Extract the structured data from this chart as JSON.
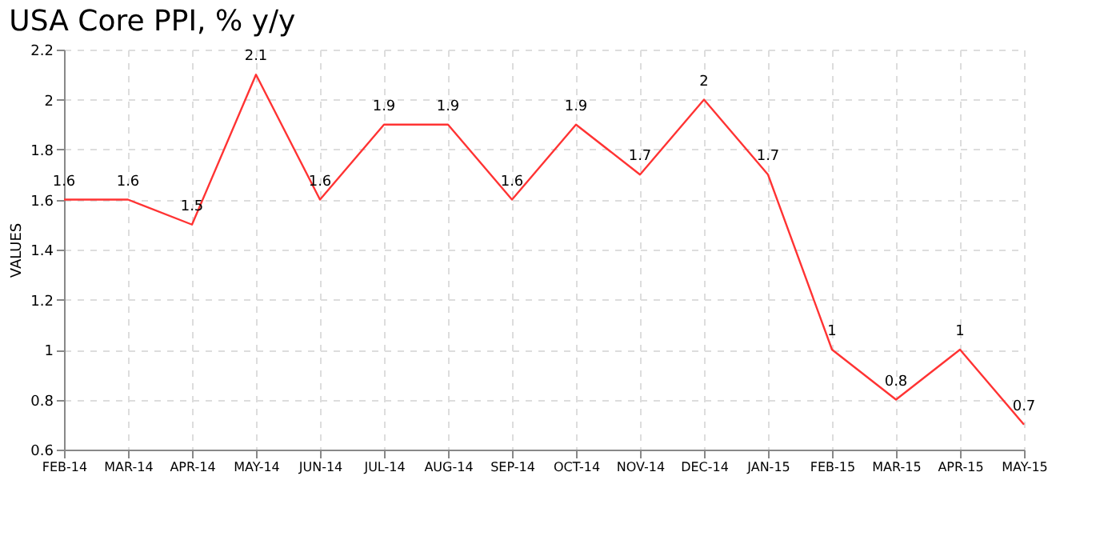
{
  "chart_data": {
    "type": "line",
    "title": "USA Core PPI, % y/y",
    "ylabel": "VALUES",
    "categories": [
      "FEB-14",
      "MAR-14",
      "APR-14",
      "MAY-14",
      "JUN-14",
      "JUL-14",
      "AUG-14",
      "SEP-14",
      "OCT-14",
      "NOV-14",
      "DEC-14",
      "JAN-15",
      "FEB-15",
      "MAR-15",
      "APR-15",
      "MAY-15"
    ],
    "series": [
      {
        "color": "#ff3333",
        "values": [
          1.6,
          1.6,
          1.5,
          2.1,
          1.6,
          1.9,
          1.9,
          1.6,
          1.9,
          1.7,
          2,
          1.7,
          1,
          0.8,
          1,
          0.7
        ]
      }
    ],
    "ylim": [
      0.6,
      2.2
    ],
    "yticks": [
      0.6,
      0.8,
      1,
      1.2,
      1.4,
      1.6,
      1.8,
      2,
      2.2
    ],
    "grid": true,
    "data_labels": true,
    "marker": "none",
    "line_style": "solid"
  }
}
